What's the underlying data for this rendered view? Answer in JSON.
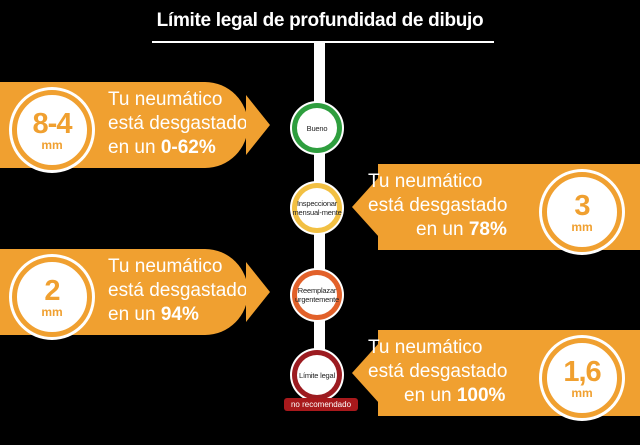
{
  "title": "Límite legal de profundidad de dibujo",
  "statements": [
    {
      "line1": "Tu neumático",
      "line2": "está desgastado",
      "prefix": "en un ",
      "percent": "0-62%",
      "depth": "8-4",
      "unit": "mm",
      "side": "left"
    },
    {
      "line1": "Tu neumático",
      "line2": "está desgastado",
      "prefix": "en un ",
      "percent": "78%",
      "depth": "3",
      "unit": "mm",
      "side": "right"
    },
    {
      "line1": "Tu neumático",
      "line2": "está desgastado",
      "prefix": "en un ",
      "percent": "94%",
      "depth": "2",
      "unit": "mm",
      "side": "left"
    },
    {
      "line1": "Tu neumático",
      "line2": "está desgastado",
      "prefix": "en un ",
      "percent": "100%",
      "depth": "1,6",
      "unit": "mm",
      "side": "right"
    }
  ],
  "nodes": [
    {
      "label": "Bueno",
      "color": "#2e9e3e"
    },
    {
      "label": "Inspeccionar mensual-mente",
      "color": "#f2c043"
    },
    {
      "label": "Reemplazar urgentemente",
      "color": "#e2612a"
    },
    {
      "label": "Límite legal",
      "color": "#9c1b20"
    }
  ],
  "note": "no recomendado",
  "colors": {
    "accent": "#f0a030",
    "background": "#000000"
  }
}
